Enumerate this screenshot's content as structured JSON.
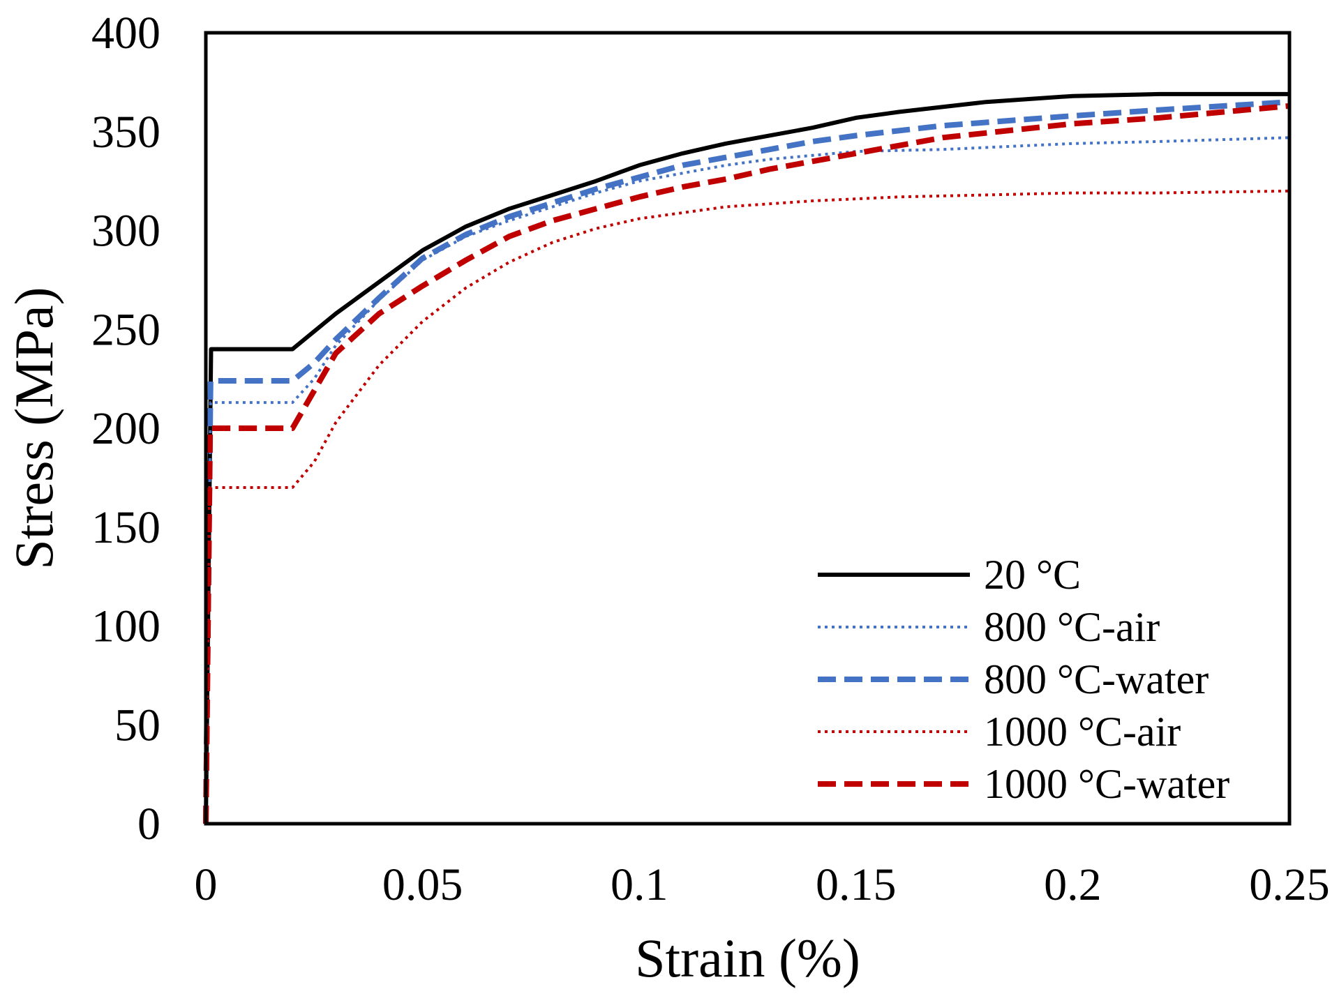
{
  "chart_data": {
    "type": "line",
    "title": "",
    "xlabel": "Strain (%)",
    "ylabel": "Stress (MPa)",
    "xlim": [
      0,
      0.25
    ],
    "ylim": [
      0,
      400
    ],
    "xticks": [
      0,
      0.05,
      0.1,
      0.15,
      0.2,
      0.25
    ],
    "xtick_labels": [
      "0",
      "0.05",
      "0.1",
      "0.15",
      "0.2",
      "0.25"
    ],
    "yticks": [
      0,
      50,
      100,
      150,
      200,
      250,
      300,
      350,
      400
    ],
    "ytick_labels": [
      "0",
      "50",
      "100",
      "150",
      "200",
      "250",
      "300",
      "350",
      "400"
    ],
    "grid": false,
    "legend_position": "bottom-right",
    "series": [
      {
        "name": "20 °C",
        "color": "#000000",
        "style": "solid",
        "x": [
          0,
          0.0012,
          0.0012,
          0.02,
          0.025,
          0.03,
          0.04,
          0.05,
          0.06,
          0.07,
          0.08,
          0.09,
          0.1,
          0.11,
          0.12,
          0.13,
          0.14,
          0.15,
          0.16,
          0.18,
          0.2,
          0.22,
          0.25
        ],
        "y": [
          0,
          240,
          240,
          240,
          249,
          258,
          274,
          290,
          302,
          311,
          318,
          325,
          333,
          339,
          344,
          348,
          352,
          357,
          360,
          365,
          368,
          369,
          369
        ]
      },
      {
        "name": "800 °C-air",
        "color": "#4472C4",
        "style": "dotted",
        "x": [
          0,
          0.0011,
          0.0011,
          0.02,
          0.025,
          0.03,
          0.04,
          0.05,
          0.06,
          0.07,
          0.08,
          0.09,
          0.1,
          0.11,
          0.12,
          0.13,
          0.14,
          0.15,
          0.17,
          0.2,
          0.22,
          0.25
        ],
        "y": [
          0,
          213,
          213,
          213,
          225,
          242,
          265,
          285,
          297,
          305,
          312,
          319,
          325,
          329,
          333,
          336,
          338,
          340,
          341,
          344,
          345,
          347
        ]
      },
      {
        "name": "800 °C-water",
        "color": "#4472C4",
        "style": "dashed",
        "x": [
          0,
          0.0011,
          0.0011,
          0.02,
          0.025,
          0.03,
          0.04,
          0.05,
          0.06,
          0.07,
          0.08,
          0.09,
          0.1,
          0.11,
          0.12,
          0.13,
          0.14,
          0.15,
          0.17,
          0.2,
          0.22,
          0.25
        ],
        "y": [
          0,
          224,
          224,
          224,
          233,
          245,
          266,
          286,
          298,
          307,
          314,
          321,
          327,
          333,
          337,
          341,
          345,
          348,
          353,
          358,
          361,
          365
        ]
      },
      {
        "name": "1000 °C-air",
        "color": "#C00000",
        "style": "dotted",
        "x": [
          0,
          0.0009,
          0.0009,
          0.02,
          0.025,
          0.03,
          0.04,
          0.05,
          0.06,
          0.07,
          0.08,
          0.09,
          0.1,
          0.11,
          0.12,
          0.14,
          0.16,
          0.18,
          0.2,
          0.22,
          0.25
        ],
        "y": [
          0,
          170,
          170,
          170,
          183,
          203,
          232,
          254,
          271,
          284,
          294,
          301,
          306,
          309,
          312,
          315,
          317,
          318,
          319,
          319,
          320
        ]
      },
      {
        "name": "1000 °C-water",
        "color": "#C00000",
        "style": "dashed",
        "x": [
          0,
          0.001,
          0.001,
          0.02,
          0.025,
          0.03,
          0.04,
          0.05,
          0.06,
          0.07,
          0.08,
          0.09,
          0.1,
          0.11,
          0.12,
          0.13,
          0.14,
          0.15,
          0.17,
          0.2,
          0.22,
          0.25
        ],
        "y": [
          0,
          200,
          200,
          200,
          219,
          238,
          258,
          272,
          285,
          297,
          305,
          311,
          317,
          322,
          326,
          331,
          335,
          339,
          347,
          354,
          357,
          363
        ]
      }
    ]
  }
}
